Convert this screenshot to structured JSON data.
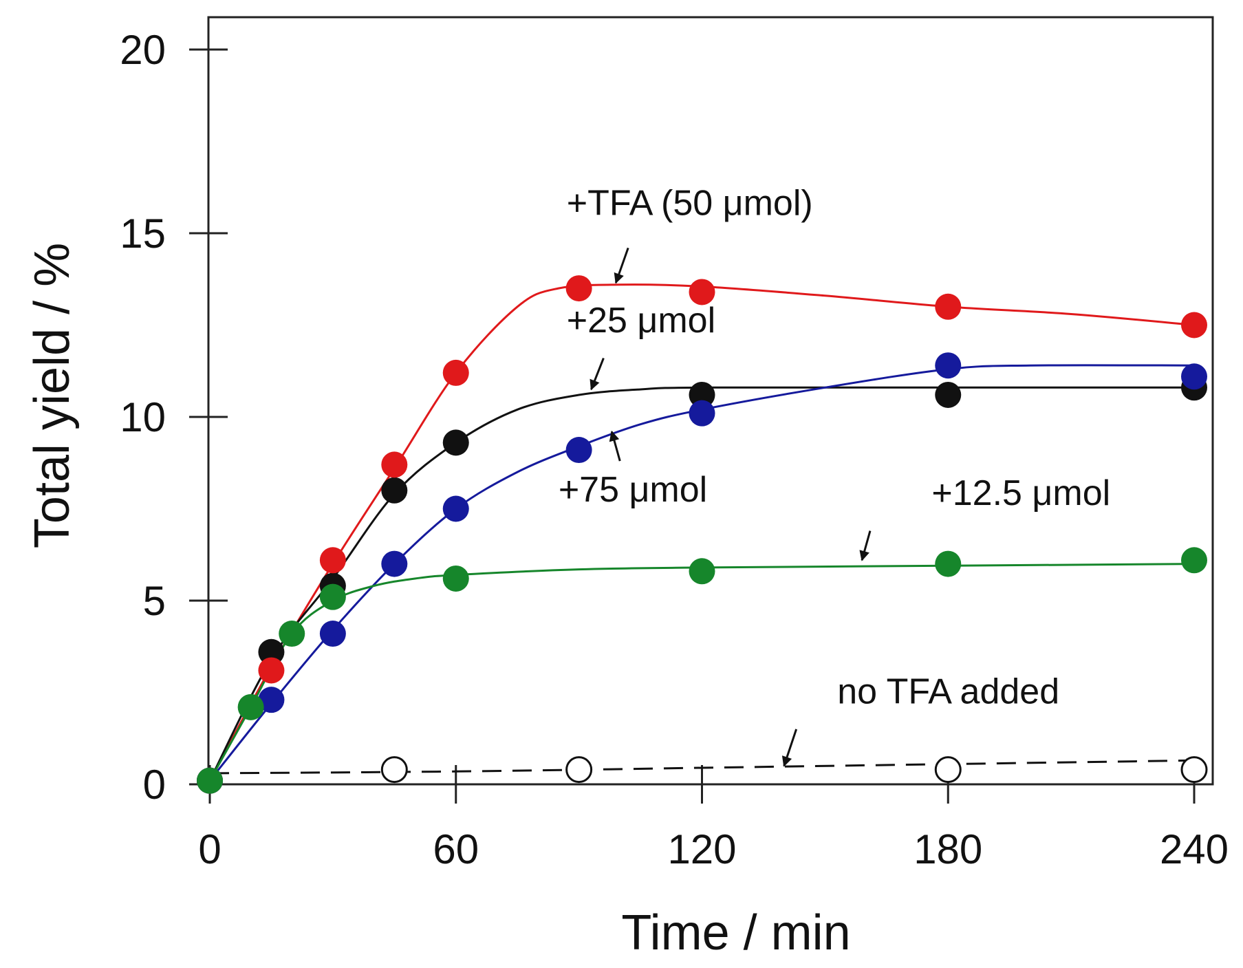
{
  "chart_data": {
    "type": "scatter",
    "title": "",
    "xlabel": "Time / min",
    "ylabel": "Total yield / %",
    "xlim": [
      0,
      245
    ],
    "ylim": [
      0,
      20.8
    ],
    "xticks": [
      0,
      60,
      120,
      180,
      240
    ],
    "xtick_labels": [
      "0",
      "60",
      "120",
      "180",
      "240"
    ],
    "yticks": [
      0,
      5,
      10,
      15,
      20
    ],
    "ytick_labels": [
      "0",
      "5",
      "10",
      "15",
      "20"
    ],
    "grid": false,
    "series": [
      {
        "name": "+TFA (50 μmol)",
        "color": "#e0191b",
        "marker": "filled",
        "x": [
          0,
          15,
          30,
          45,
          60,
          90,
          120,
          180,
          240
        ],
        "y": [
          0.1,
          3.1,
          6.1,
          8.7,
          11.2,
          13.5,
          13.4,
          13.0,
          12.5
        ],
        "curve": [
          [
            0,
            0.1
          ],
          [
            15,
            3.2
          ],
          [
            30,
            6.0
          ],
          [
            45,
            8.6
          ],
          [
            60,
            11.2
          ],
          [
            75,
            13.0
          ],
          [
            85,
            13.5
          ],
          [
            100,
            13.6
          ],
          [
            120,
            13.55
          ],
          [
            150,
            13.3
          ],
          [
            180,
            13.0
          ],
          [
            210,
            12.8
          ],
          [
            240,
            12.5
          ]
        ]
      },
      {
        "name": "+25 μmol",
        "color": "#111111",
        "marker": "filled",
        "x": [
          0,
          15,
          30,
          45,
          60,
          120,
          180,
          240
        ],
        "y": [
          0.1,
          3.6,
          5.4,
          8.0,
          9.3,
          10.6,
          10.6,
          10.8
        ],
        "curve": [
          [
            0,
            0.1
          ],
          [
            15,
            3.4
          ],
          [
            30,
            5.6
          ],
          [
            45,
            7.9
          ],
          [
            60,
            9.3
          ],
          [
            75,
            10.2
          ],
          [
            90,
            10.6
          ],
          [
            105,
            10.75
          ],
          [
            120,
            10.8
          ],
          [
            180,
            10.8
          ],
          [
            240,
            10.8
          ]
        ]
      },
      {
        "name": "+75 μmol",
        "color": "#151a9c",
        "marker": "filled",
        "x": [
          0,
          15,
          30,
          45,
          60,
          90,
          120,
          180,
          240
        ],
        "y": [
          0.1,
          2.3,
          4.1,
          6.0,
          7.5,
          9.1,
          10.1,
          11.4,
          11.1
        ],
        "curve": [
          [
            0,
            0.1
          ],
          [
            15,
            2.2
          ],
          [
            30,
            4.2
          ],
          [
            45,
            6.0
          ],
          [
            60,
            7.5
          ],
          [
            75,
            8.5
          ],
          [
            90,
            9.2
          ],
          [
            105,
            9.8
          ],
          [
            120,
            10.2
          ],
          [
            150,
            10.8
          ],
          [
            180,
            11.3
          ],
          [
            200,
            11.4
          ],
          [
            240,
            11.4
          ]
        ]
      },
      {
        "name": "+12.5 μmol",
        "color": "#16862b",
        "marker": "filled",
        "x": [
          0,
          10,
          20,
          30,
          60,
          120,
          180,
          240
        ],
        "y": [
          0.1,
          2.1,
          4.1,
          5.1,
          5.6,
          5.8,
          6.0,
          6.1
        ],
        "curve": [
          [
            0,
            0.1
          ],
          [
            10,
            2.1
          ],
          [
            20,
            4.1
          ],
          [
            30,
            5.0
          ],
          [
            40,
            5.4
          ],
          [
            50,
            5.6
          ],
          [
            60,
            5.7
          ],
          [
            90,
            5.85
          ],
          [
            120,
            5.9
          ],
          [
            180,
            5.95
          ],
          [
            240,
            6.0
          ]
        ]
      },
      {
        "name": "no TFA added",
        "color": "#111111",
        "marker": "open",
        "dashed": true,
        "x": [
          45,
          90,
          180,
          240
        ],
        "y": [
          0.4,
          0.4,
          0.4,
          0.4
        ],
        "curve": [
          [
            0,
            0.3
          ],
          [
            60,
            0.35
          ],
          [
            120,
            0.45
          ],
          [
            180,
            0.55
          ],
          [
            240,
            0.65
          ]
        ]
      }
    ],
    "annotations": [
      {
        "text": "+TFA (50 μmol)",
        "series": "+TFA (50 μmol)",
        "arrow_tip": [
          99,
          13.65
        ],
        "arrow_tail": [
          102,
          14.6
        ],
        "label_at": [
          87,
          15.5
        ]
      },
      {
        "text": "+25 μmol",
        "series": "+25 μmol",
        "arrow_tip": [
          93,
          10.75
        ],
        "arrow_tail": [
          96,
          11.6
        ],
        "label_at": [
          87,
          12.3
        ]
      },
      {
        "text": "+75 μmol",
        "series": "+75 μmol",
        "arrow_tip": [
          98,
          9.6
        ],
        "arrow_tail": [
          100,
          8.8
        ],
        "label_at": [
          85,
          7.7
        ]
      },
      {
        "text": "+12.5 μmol",
        "series": "+12.5 μmol",
        "arrow_tip": [
          159,
          6.1
        ],
        "arrow_tail": [
          161,
          6.9
        ],
        "label_at": [
          176,
          7.6
        ]
      },
      {
        "text": "no TFA added",
        "series": "no TFA added",
        "arrow_tip": [
          140,
          0.5
        ],
        "arrow_tail": [
          143,
          1.5
        ],
        "label_at": [
          153,
          2.2
        ]
      }
    ]
  }
}
